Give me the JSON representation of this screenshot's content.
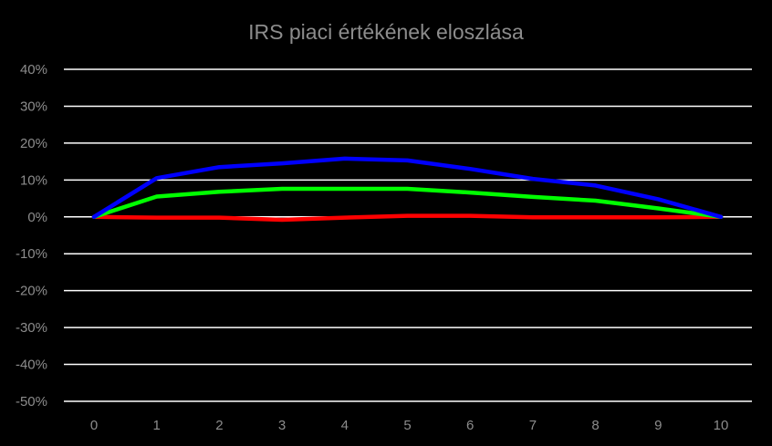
{
  "chart_data": {
    "type": "line",
    "title": "IRS piaci értékének eloszlása",
    "xlabel": "",
    "ylabel": "",
    "x": [
      0,
      1,
      2,
      3,
      4,
      5,
      6,
      7,
      8,
      9,
      10
    ],
    "xlim": [
      0,
      10
    ],
    "ylim": [
      -50,
      40
    ],
    "y_ticks": [
      40,
      30,
      20,
      10,
      0,
      -10,
      -20,
      -30,
      -40,
      -50
    ],
    "y_tick_labels": [
      "40%",
      "30%",
      "20%",
      "10%",
      "0%",
      "-10%",
      "-20%",
      "-30%",
      "-40%",
      "-50%"
    ],
    "x_tick_labels": [
      "0",
      "1",
      "2",
      "3",
      "4",
      "5",
      "6",
      "7",
      "8",
      "9",
      "10"
    ],
    "grid": "horizontal",
    "legend": "none",
    "series": [
      {
        "color": "#0000ff",
        "values": [
          0,
          10.5,
          13.5,
          14.5,
          15.8,
          15.3,
          13,
          10.3,
          8.5,
          4.8,
          0
        ]
      },
      {
        "color": "#00ff00",
        "values": [
          0,
          5.5,
          6.8,
          7.6,
          7.6,
          7.6,
          6.6,
          5.4,
          4.4,
          2.3,
          0
        ]
      },
      {
        "color": "#ff0000",
        "values": [
          0,
          -0.2,
          -0.2,
          -0.8,
          -0.2,
          0.3,
          0.3,
          -0.1,
          -0.1,
          -0.1,
          0
        ]
      }
    ],
    "colors": {
      "background": "#000000",
      "grid": "#ffffff",
      "text": "#8c8c8c"
    }
  }
}
